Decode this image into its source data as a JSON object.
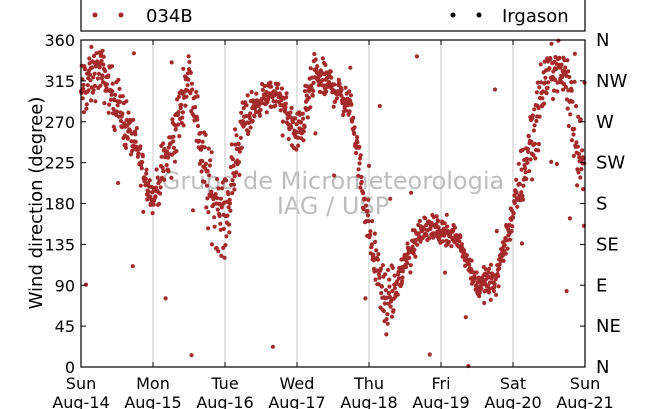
{
  "chart_data": {
    "type": "scatter",
    "title": "",
    "ylabel": "Wind direction (degree)",
    "xlabel": "",
    "ylim": [
      0,
      360
    ],
    "yticks": [
      0,
      45,
      90,
      135,
      180,
      225,
      270,
      315,
      360
    ],
    "xlim": [
      "2016-08-14",
      "2016-08-21"
    ],
    "xticks": [
      {
        "day": "Sun",
        "date": "Aug-14"
      },
      {
        "day": "Mon",
        "date": "Aug-15"
      },
      {
        "day": "Tue",
        "date": "Aug-16"
      },
      {
        "day": "Wed",
        "date": "Aug-17"
      },
      {
        "day": "Thu",
        "date": "Aug-18"
      },
      {
        "day": "Fri",
        "date": "Aug-19"
      },
      {
        "day": "Sat",
        "date": "Aug-20"
      },
      {
        "day": "Sun",
        "date": "Aug-21"
      }
    ],
    "right_axis_labels": [
      "N",
      "NE",
      "E",
      "SE",
      "S",
      "SW",
      "W",
      "NW",
      "N"
    ],
    "grid": "vertical lines at day boundaries",
    "legend_placement": "top, above plot",
    "watermark": [
      "Grupo de Micrometeorologia",
      "IAG / USP"
    ],
    "series": [
      {
        "name": "034B",
        "marker": "dot",
        "color": "#a52a2a",
        "trend": [
          {
            "x": "2016-08-14 00:00",
            "y": 300,
            "spread": 40
          },
          {
            "x": "2016-08-14 06:00",
            "y": 330,
            "spread": 25
          },
          {
            "x": "2016-08-14 12:00",
            "y": 290,
            "spread": 30
          },
          {
            "x": "2016-08-14 18:00",
            "y": 245,
            "spread": 25
          },
          {
            "x": "2016-08-15 00:00",
            "y": 185,
            "spread": 15
          },
          {
            "x": "2016-08-15 06:00",
            "y": 240,
            "spread": 40
          },
          {
            "x": "2016-08-15 12:00",
            "y": 325,
            "spread": 20
          },
          {
            "x": "2016-08-15 18:00",
            "y": 200,
            "spread": 50
          },
          {
            "x": "2016-08-16 00:00",
            "y": 160,
            "spread": 40
          },
          {
            "x": "2016-08-16 06:00",
            "y": 270,
            "spread": 25
          },
          {
            "x": "2016-08-16 12:00",
            "y": 295,
            "spread": 15
          },
          {
            "x": "2016-08-16 18:00",
            "y": 300,
            "spread": 15
          },
          {
            "x": "2016-08-17 00:00",
            "y": 250,
            "spread": 30
          },
          {
            "x": "2016-08-17 06:00",
            "y": 320,
            "spread": 20
          },
          {
            "x": "2016-08-17 12:00",
            "y": 310,
            "spread": 20
          },
          {
            "x": "2016-08-17 18:00",
            "y": 285,
            "spread": 15
          },
          {
            "x": "2016-08-18 00:00",
            "y": 150,
            "spread": 30
          },
          {
            "x": "2016-08-18 06:00",
            "y": 60,
            "spread": 30
          },
          {
            "x": "2016-08-18 12:00",
            "y": 115,
            "spread": 25
          },
          {
            "x": "2016-08-18 18:00",
            "y": 155,
            "spread": 15
          },
          {
            "x": "2016-08-19 00:00",
            "y": 150,
            "spread": 12
          },
          {
            "x": "2016-08-19 06:00",
            "y": 140,
            "spread": 10
          },
          {
            "x": "2016-08-19 12:00",
            "y": 90,
            "spread": 15
          },
          {
            "x": "2016-08-19 18:00",
            "y": 95,
            "spread": 20
          },
          {
            "x": "2016-08-20 00:00",
            "y": 170,
            "spread": 20
          },
          {
            "x": "2016-08-20 06:00",
            "y": 250,
            "spread": 50
          },
          {
            "x": "2016-08-20 12:00",
            "y": 330,
            "spread": 20
          },
          {
            "x": "2016-08-20 18:00",
            "y": 320,
            "spread": 40
          },
          {
            "x": "2016-08-21 00:00",
            "y": 200,
            "spread": 50
          }
        ]
      },
      {
        "name": "Irgason",
        "marker": "dot",
        "color": "#000000",
        "values": []
      }
    ]
  }
}
